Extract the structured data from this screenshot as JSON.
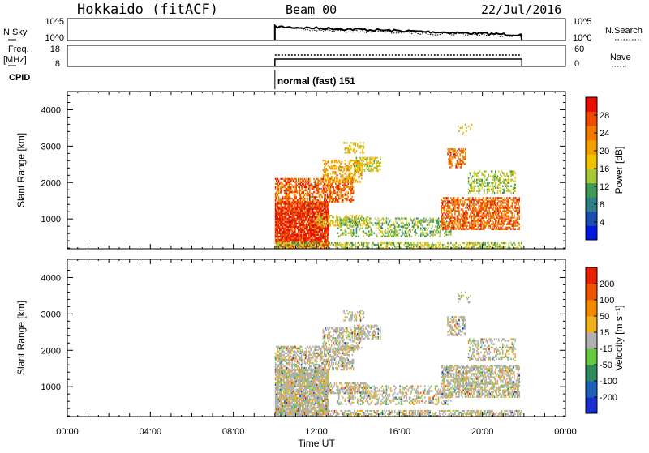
{
  "header": {
    "station": "Hokkaido (fitACF)",
    "beam": "Beam 00",
    "date": "22/Jul/2016"
  },
  "strips": {
    "nsky_label": "N.Sky",
    "nsky_ticks": [
      "10^5",
      "10^0"
    ],
    "nsearch_label": "N.Search",
    "nsearch_ticks": [
      "10^5",
      "10^0"
    ],
    "freq_label": "Freq.",
    "freq_unit": "[MHz]",
    "freq_ticks": [
      "18",
      "8"
    ],
    "nave_label": "Nave",
    "nave_ticks": [
      "60",
      "0"
    ],
    "cpid_label": "CPID",
    "cpid_text": "normal (fast) 151"
  },
  "colors": {
    "power": [
      "#0018e0",
      "#1a4fb0",
      "#2e7f86",
      "#3f9a55",
      "#a8c83a",
      "#f0c400",
      "#f2a000",
      "#f07a00",
      "#ee4a00",
      "#e60f00"
    ],
    "velocity": [
      "#1a2fd0",
      "#1e5fb5",
      "#2f8a5c",
      "#66c83f",
      "#b0b0b0",
      "#f0b020",
      "#f28a00",
      "#ee5500",
      "#e62000"
    ]
  },
  "chart_data": [
    {
      "type": "heatmap",
      "name": "power",
      "xlabel": "",
      "ylabel": "Slant Range [km]",
      "xlim": [
        0,
        24
      ],
      "ylim": [
        180,
        4500
      ],
      "yticks": [
        "1000",
        "2000",
        "3000",
        "4000"
      ],
      "colorbar_label": "Power [dB]",
      "colorbar_ticks": [
        "4",
        "8",
        "12",
        "16",
        "20",
        "24",
        "28"
      ],
      "data_window_ut": [
        10.0,
        21.9
      ]
    },
    {
      "type": "heatmap",
      "name": "velocity",
      "xlabel": "Time UT",
      "ylabel": "Slant Range [km]",
      "xlim": [
        0,
        24
      ],
      "ylim": [
        180,
        4500
      ],
      "xticks": [
        "00:00",
        "04:00",
        "08:00",
        "12:00",
        "16:00",
        "20:00",
        "00:00"
      ],
      "yticks": [
        "1000",
        "2000",
        "3000",
        "4000"
      ],
      "colorbar_label": "Velocity [m s⁻¹]",
      "colorbar_ticks": [
        "-200",
        "-100",
        "-50",
        "-15",
        "15",
        "50",
        "100",
        "200"
      ],
      "data_window_ut": [
        10.0,
        21.9
      ]
    }
  ]
}
